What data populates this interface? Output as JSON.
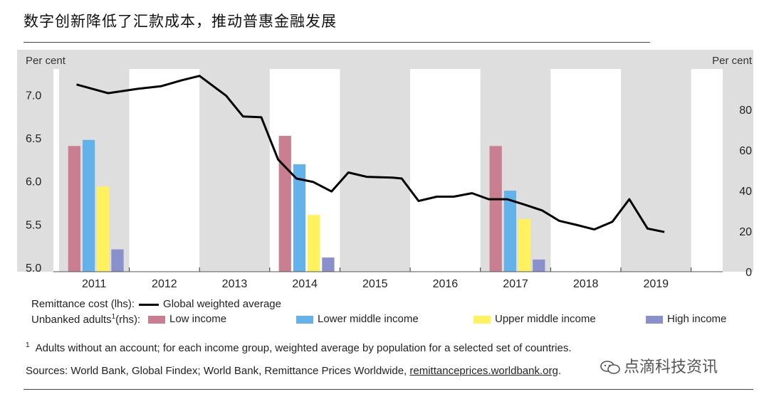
{
  "title": "数字创新降低了汇款成本，推动普惠金融发展",
  "chart_data": {
    "type": "bar",
    "left_axis_label": "Per cent",
    "right_axis_label": "Per cent",
    "left_ylim": [
      4.95,
      7.3
    ],
    "right_ylim": [
      0,
      100
    ],
    "left_ticks": [
      "7.0",
      "6.5",
      "6.0",
      "5.5",
      "5.0"
    ],
    "left_tick_values": [
      7.0,
      6.5,
      6.0,
      5.5,
      5.0
    ],
    "right_ticks": [
      "80",
      "60",
      "40",
      "20",
      "0"
    ],
    "right_tick_values": [
      80,
      60,
      40,
      20,
      0
    ],
    "x_ticks": [
      "2011",
      "2012",
      "2013",
      "2014",
      "2015",
      "2016",
      "2017",
      "2018",
      "2019"
    ],
    "x_tick_values": [
      2011,
      2012,
      2013,
      2014,
      2015,
      2016,
      2017,
      2018,
      2019
    ],
    "xlim": [
      2010.42,
      2019.95
    ],
    "grid": "vertical bands",
    "bar_groups": [
      {
        "x": 2011,
        "values": [
          62,
          65,
          42,
          11
        ]
      },
      {
        "x": 2014,
        "values": [
          67,
          53,
          28,
          7
        ]
      },
      {
        "x": 2017,
        "values": [
          62,
          40,
          26,
          6
        ]
      }
    ],
    "bar_series": [
      {
        "name": "Low income",
        "color": "#c97f91"
      },
      {
        "name": "Lower middle income",
        "color": "#63b2ea"
      },
      {
        "name": "Upper middle income",
        "color": "#fff25c"
      },
      {
        "name": "High income",
        "color": "#8a90cc"
      }
    ],
    "line_series": {
      "name": "Global weighted average",
      "color": "#000000",
      "points": [
        [
          2010.75,
          7.12
        ],
        [
          2011.2,
          7.02
        ],
        [
          2011.62,
          7.07
        ],
        [
          2011.95,
          7.1
        ],
        [
          2012.25,
          7.17
        ],
        [
          2012.5,
          7.22
        ],
        [
          2012.88,
          6.99
        ],
        [
          2013.12,
          6.75
        ],
        [
          2013.38,
          6.74
        ],
        [
          2013.62,
          6.25
        ],
        [
          2013.88,
          6.03
        ],
        [
          2014.12,
          5.99
        ],
        [
          2014.38,
          5.88
        ],
        [
          2014.62,
          6.1
        ],
        [
          2014.88,
          6.05
        ],
        [
          2015.25,
          6.04
        ],
        [
          2015.38,
          6.03
        ],
        [
          2015.62,
          5.77
        ],
        [
          2015.88,
          5.82
        ],
        [
          2016.12,
          5.82
        ],
        [
          2016.38,
          5.86
        ],
        [
          2016.62,
          5.79
        ],
        [
          2016.88,
          5.79
        ],
        [
          2017.12,
          5.73
        ],
        [
          2017.38,
          5.66
        ],
        [
          2017.62,
          5.54
        ],
        [
          2017.88,
          5.49
        ],
        [
          2018.12,
          5.44
        ],
        [
          2018.38,
          5.53
        ],
        [
          2018.62,
          5.79
        ],
        [
          2018.88,
          5.45
        ],
        [
          2019.12,
          5.41
        ]
      ]
    }
  },
  "legend": {
    "row1_label": "Remittance cost (lhs):",
    "row1_item": "Global weighted average",
    "row2_label": "Unbanked adults",
    "row2_sup": "1",
    "row2_suffix": "(rhs):",
    "items": [
      "Low income",
      "Lower middle income",
      "Upper middle income",
      "High income"
    ]
  },
  "footnote": {
    "marker": "1",
    "text": "Adults without an account; for each income group, weighted average by population for a selected set of countries."
  },
  "sources": {
    "prefix": "Sources: World Bank, Global Findex; World Bank, Remittance Prices Worldwide, ",
    "link": "remittanceprices.worldbank.org",
    "suffix": "."
  },
  "watermark": "点滴科技资讯",
  "colors": {
    "band": "#dedede",
    "plot_bg": "#ffffff",
    "line": "#000000"
  }
}
